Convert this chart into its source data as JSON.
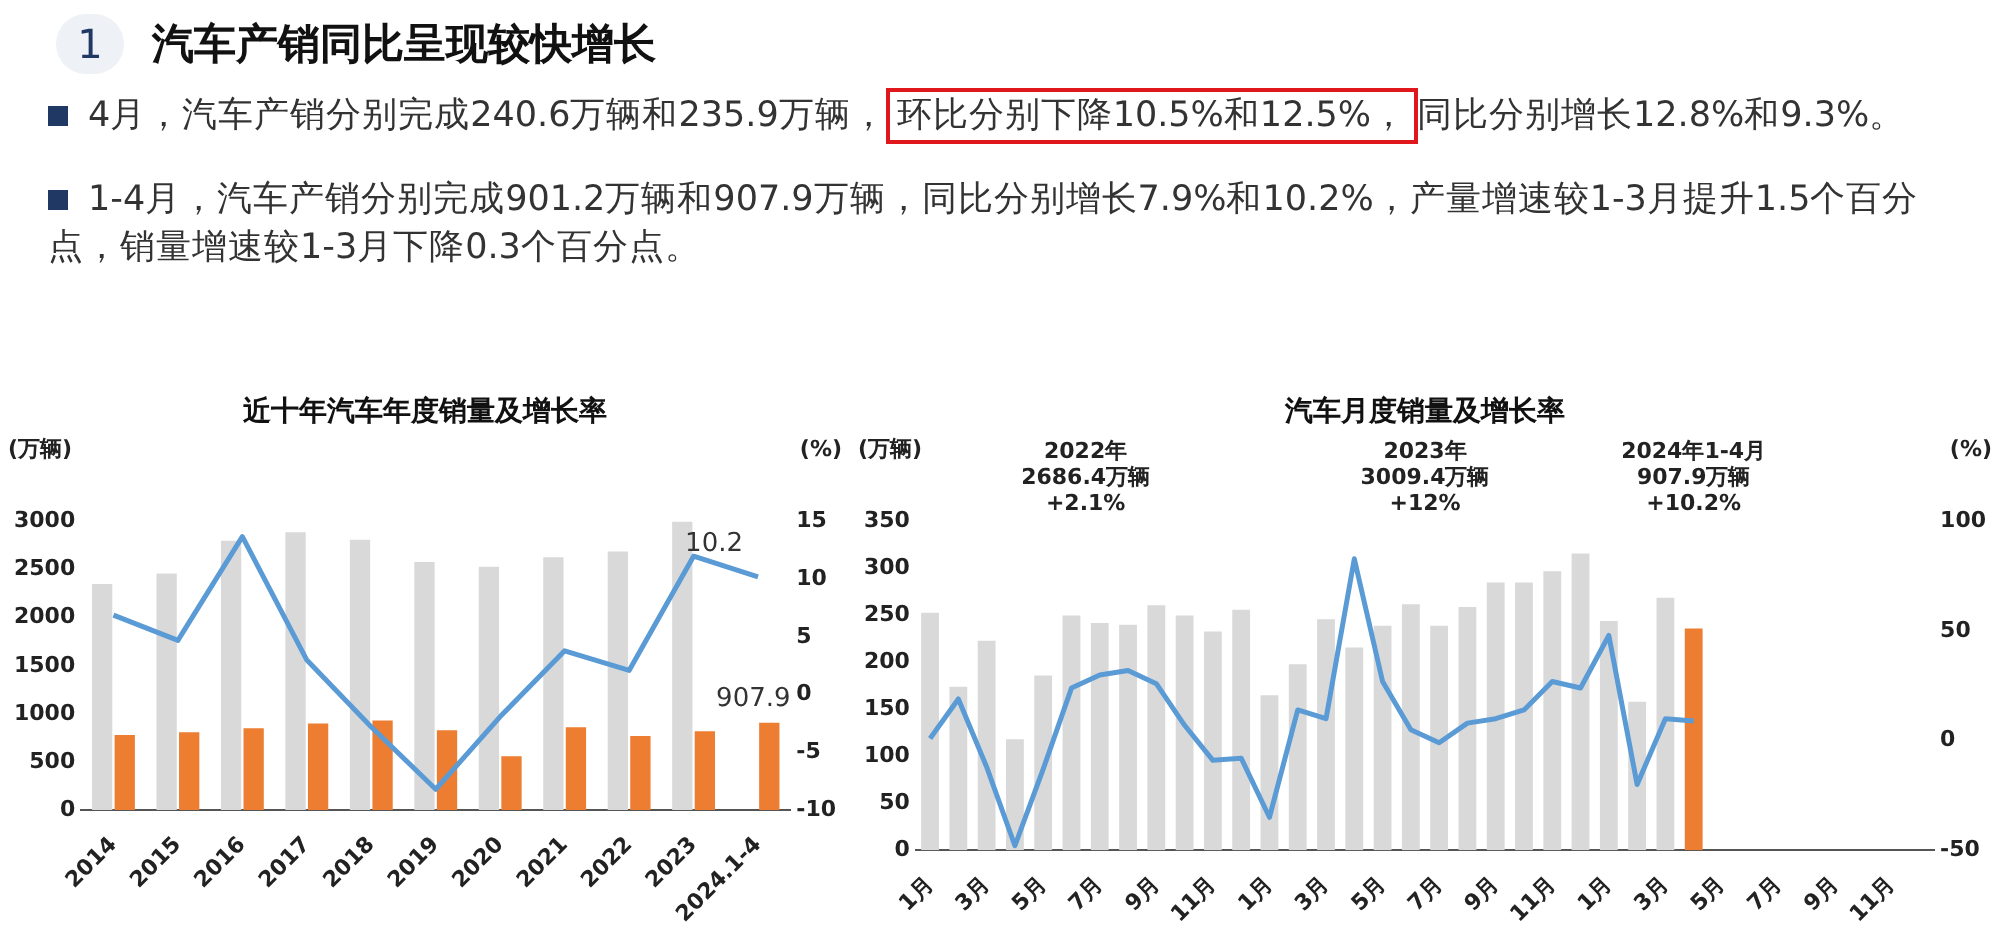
{
  "chart_data": [
    {
      "type": "other",
      "title": "汽车产销同比呈现较快增长",
      "annotations": [
        "1",
        "4月，汽车产销分别完成240.6万辆和235.9万辆，",
        "环比分别下降10.5%和12.5%，",
        "同比分别增长12.8%和9.3%。",
        "1-4月，汽车产销分别完成901.2万辆和907.9万辆，同比分别增长7.9%和10.2%，产量增速较1-3月提升1.5个百分点，销量增速较1-3月下降0.3个百分点。"
      ]
    },
    {
      "type": "bar",
      "title": "近十年汽车年度销量及增长率",
      "ylabel": "(万辆)",
      "y2label": "(%)",
      "categories": [
        "2014",
        "2015",
        "2016",
        "2017",
        "2018",
        "2019",
        "2020",
        "2021",
        "2022",
        "2023",
        "2024.1-4"
      ],
      "series": [
        {
          "color": "#d9d9d9",
          "values": [
            2350,
            2460,
            2800,
            2890,
            2810,
            2580,
            2530,
            2630,
            2690,
            3000,
            null
          ]
        },
        {
          "color": "#ed7d31",
          "values": [
            780,
            810,
            850,
            900,
            930,
            830,
            560,
            860,
            770,
            820,
            907.9
          ],
          "value_labels": [
            null,
            null,
            null,
            null,
            null,
            null,
            null,
            null,
            null,
            null,
            "907.9"
          ]
        },
        {
          "type": "line",
          "axis": "y2",
          "color": "#5b9bd5",
          "values": [
            6.9,
            4.7,
            13.7,
            3.0,
            -2.8,
            -8.2,
            -1.9,
            3.8,
            2.1,
            12.0,
            10.2
          ],
          "value_labels": [
            null,
            null,
            null,
            null,
            null,
            null,
            null,
            null,
            null,
            null,
            "10.2"
          ]
        }
      ],
      "ylim": [
        0,
        3000
      ],
      "yticks": [
        0,
        500,
        1000,
        1500,
        2000,
        2500,
        3000
      ],
      "y2lim": [
        -10,
        15
      ],
      "y2ticks": [
        -10,
        -5,
        0,
        5,
        10,
        15
      ],
      "marker": "none"
    },
    {
      "type": "bar",
      "title": "汽车月度销量及增长率",
      "ylabel": "(万辆)",
      "y2label": "(%)",
      "annotations": [
        "2022年\n2686.4万辆\n+2.1%",
        "2023年\n3009.4万辆\n+12%",
        "2024年1-4月\n907.9万辆\n+10.2%"
      ],
      "categories": [
        "1月",
        null,
        "3月",
        null,
        "5月",
        null,
        "7月",
        null,
        "9月",
        null,
        "11月",
        null,
        "1月",
        null,
        "3月",
        null,
        "5月",
        null,
        "7月",
        null,
        "9月",
        null,
        "11月",
        null,
        "1月",
        null,
        "3月",
        null,
        "5月",
        null,
        "7月",
        null,
        "9月",
        null,
        "11月",
        null
      ],
      "series": [
        {
          "colors": [
            "#d9d9d9",
            "#d9d9d9",
            "#d9d9d9",
            "#d9d9d9",
            "#d9d9d9",
            "#d9d9d9",
            "#d9d9d9",
            "#d9d9d9",
            "#d9d9d9",
            "#d9d9d9",
            "#d9d9d9",
            "#d9d9d9",
            "#d9d9d9",
            "#d9d9d9",
            "#d9d9d9",
            "#d9d9d9",
            "#d9d9d9",
            "#d9d9d9",
            "#d9d9d9",
            "#d9d9d9",
            "#d9d9d9",
            "#d9d9d9",
            "#d9d9d9",
            "#d9d9d9",
            "#d9d9d9",
            "#d9d9d9",
            "#d9d9d9",
            "#ed7d31",
            "#d9d9d9",
            "#d9d9d9",
            "#d9d9d9",
            "#d9d9d9",
            "#d9d9d9",
            "#d9d9d9",
            "#d9d9d9",
            "#d9d9d9"
          ],
          "values": [
            253,
            174,
            223,
            118,
            186,
            250,
            242,
            240,
            261,
            250,
            233,
            256,
            165,
            198,
            246,
            216,
            239,
            262,
            239,
            259,
            285,
            285,
            297,
            316,
            244,
            158,
            269,
            236,
            null,
            null,
            null,
            null,
            null,
            null,
            null,
            null
          ]
        },
        {
          "type": "line",
          "axis": "y2",
          "color": "#5b9bd5",
          "values": [
            1,
            19,
            -12,
            -48,
            -13,
            24,
            30,
            32,
            26,
            7,
            -9,
            -8,
            -35,
            14,
            10,
            83,
            27,
            5,
            -1,
            8,
            10,
            14,
            27,
            24,
            48,
            -20,
            10,
            9,
            null,
            null,
            null,
            null,
            null,
            null,
            null,
            null
          ]
        }
      ],
      "ylim": [
        0,
        350
      ],
      "yticks": [
        0,
        50,
        100,
        150,
        200,
        250,
        300,
        350
      ],
      "y2lim": [
        -50,
        100
      ],
      "y2ticks": [
        -50,
        0,
        50,
        100
      ],
      "marker": "none"
    }
  ]
}
